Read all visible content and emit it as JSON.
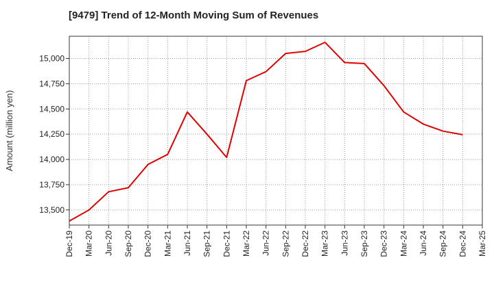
{
  "chart_data": {
    "type": "line",
    "title": "[9479]  Trend of 12-Month Moving Sum of Revenues",
    "xlabel": "",
    "ylabel": "Amount (million yen)",
    "ylim": [
      13350,
      15220
    ],
    "yticks": [
      13500,
      13750,
      14000,
      14250,
      14500,
      14750,
      15000
    ],
    "ytick_labels": [
      "13,500",
      "13,750",
      "14,000",
      "14,250",
      "14,500",
      "14,750",
      "15,000"
    ],
    "categories": [
      "Dec-19",
      "Mar-20",
      "Jun-20",
      "Sep-20",
      "Dec-20",
      "Mar-21",
      "Jun-21",
      "Sep-21",
      "Dec-21",
      "Mar-22",
      "Jun-22",
      "Sep-22",
      "Dec-22",
      "Mar-23",
      "Jun-23",
      "Sep-23",
      "Dec-23",
      "Mar-24",
      "Jun-24",
      "Sep-24",
      "Dec-24",
      "Mar-25"
    ],
    "grid": true,
    "series": [
      {
        "color": "#e00000",
        "values": [
          13390,
          13500,
          13680,
          13720,
          13950,
          14050,
          14470,
          14250,
          14020,
          14780,
          14870,
          15050,
          15070,
          15160,
          14960,
          14950,
          14730,
          14470,
          14350,
          14280,
          14245,
          null
        ]
      }
    ]
  }
}
